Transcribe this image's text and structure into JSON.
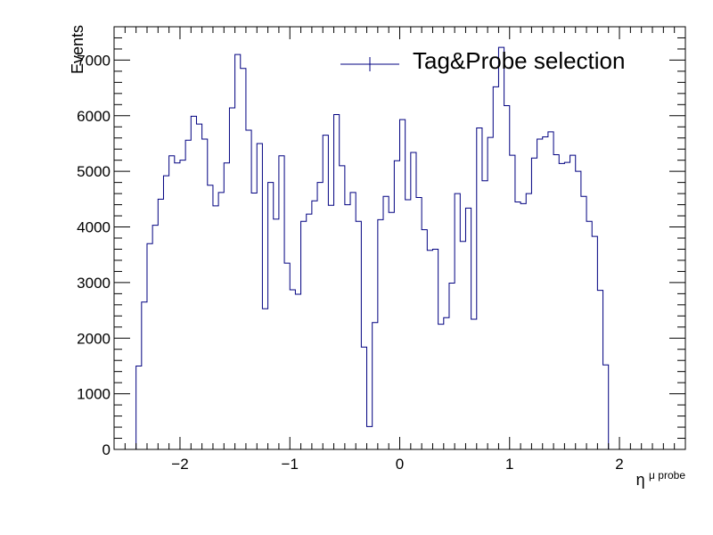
{
  "chart_data": {
    "type": "histogram",
    "x": {
      "label_main": "η",
      "label_sup": "μ probe",
      "range": [
        -2.6,
        2.6
      ],
      "major_ticks": [
        -2,
        -1,
        0,
        1,
        2
      ],
      "tick_labels": [
        "−2",
        "−1",
        "0",
        "1",
        "2"
      ]
    },
    "y": {
      "label": "Events",
      "range": [
        0,
        7600
      ],
      "major_ticks": [
        0,
        1000,
        2000,
        3000,
        4000,
        5000,
        6000,
        7000
      ],
      "tick_labels": [
        "0",
        "1000",
        "2000",
        "3000",
        "4000",
        "5000",
        "6000",
        "7000"
      ]
    },
    "legend": {
      "label": "Tag&Probe selection",
      "position": "top-right"
    },
    "series": [
      {
        "name": "Tag&Probe selection",
        "color": "#000080",
        "bin_low": -2.4,
        "bin_width": 0.05,
        "values": [
          1500,
          2650,
          3700,
          4030,
          4500,
          4920,
          5280,
          5150,
          5200,
          5560,
          5990,
          5850,
          5580,
          4750,
          4380,
          4620,
          5150,
          6140,
          7100,
          6850,
          5740,
          4610,
          5500,
          2530,
          4800,
          4140,
          5280,
          3350,
          2870,
          2790,
          4100,
          4230,
          4470,
          4800,
          5650,
          4390,
          6020,
          5100,
          4400,
          4620,
          4100,
          1840,
          410,
          2280,
          4130,
          4550,
          4260,
          5190,
          5930,
          4490,
          5340,
          4530,
          3950,
          3580,
          3600,
          2250,
          2370,
          2990,
          4600,
          3740,
          4340,
          2340,
          5780,
          4830,
          5610,
          6520,
          7230,
          6180,
          5290,
          4450,
          4420,
          4600,
          5240,
          5580,
          5620,
          5710,
          5300,
          5140,
          5160,
          5290,
          5000,
          4550,
          4100,
          3830,
          2860,
          1520
        ]
      }
    ]
  }
}
